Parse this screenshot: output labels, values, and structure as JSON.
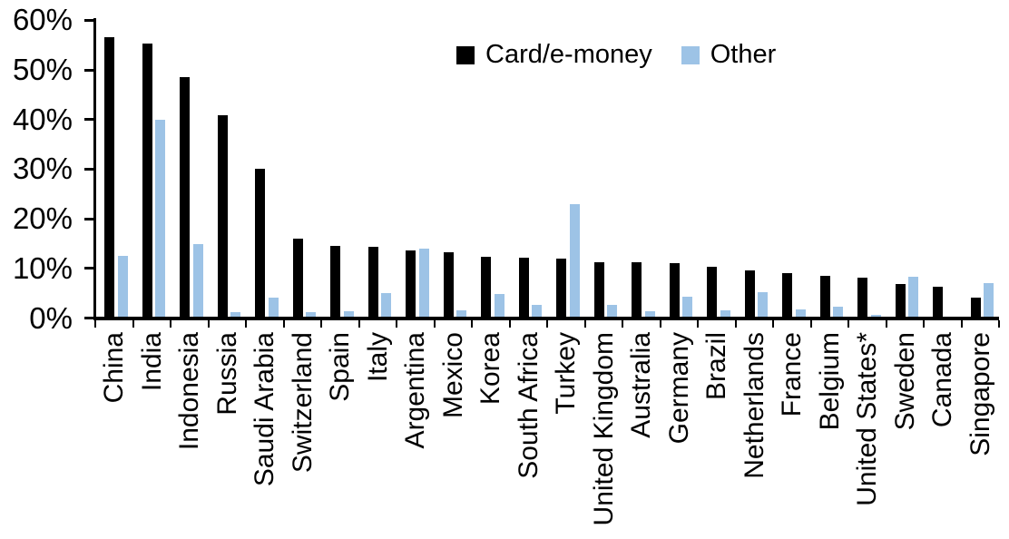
{
  "chart_data": {
    "type": "bar",
    "title": "",
    "xlabel": "",
    "ylabel": "",
    "ylim": [
      0,
      60
    ],
    "yticks": [
      "0%",
      "10%",
      "20%",
      "30%",
      "40%",
      "50%",
      "60%"
    ],
    "grid": false,
    "legend_position": "top-center",
    "categories": [
      "China",
      "India",
      "Indonesia",
      "Russia",
      "Saudi Arabia",
      "Switzerland",
      "Spain",
      "Italy",
      "Argentina",
      "Mexico",
      "Korea",
      "South Africa",
      "Turkey",
      "United Kingdom",
      "Australia",
      "Germany",
      "Brazil",
      "Netherlands",
      "France",
      "Belgium",
      "United States*",
      "Sweden",
      "Canada",
      "Singapore"
    ],
    "series": [
      {
        "name": "Card/e-money",
        "color": "#000000",
        "values": [
          56.3,
          55.0,
          48.3,
          40.6,
          29.8,
          15.7,
          14.2,
          14.1,
          13.3,
          12.9,
          12.1,
          11.8,
          11.7,
          11.0,
          10.9,
          10.7,
          10.0,
          9.3,
          8.7,
          8.2,
          7.9,
          6.6,
          6.0,
          3.9
        ],
        "interactable": "false"
      },
      {
        "name": "Other",
        "color": "#9DC3E6",
        "values": [
          12.3,
          39.7,
          14.6,
          0.9,
          3.8,
          0.9,
          1.1,
          4.7,
          13.8,
          1.3,
          4.6,
          2.4,
          22.6,
          2.4,
          1.1,
          4.0,
          1.3,
          4.9,
          1.5,
          2.0,
          0.3,
          8.0,
          0.0,
          6.7
        ],
        "interactable": "false"
      }
    ]
  }
}
